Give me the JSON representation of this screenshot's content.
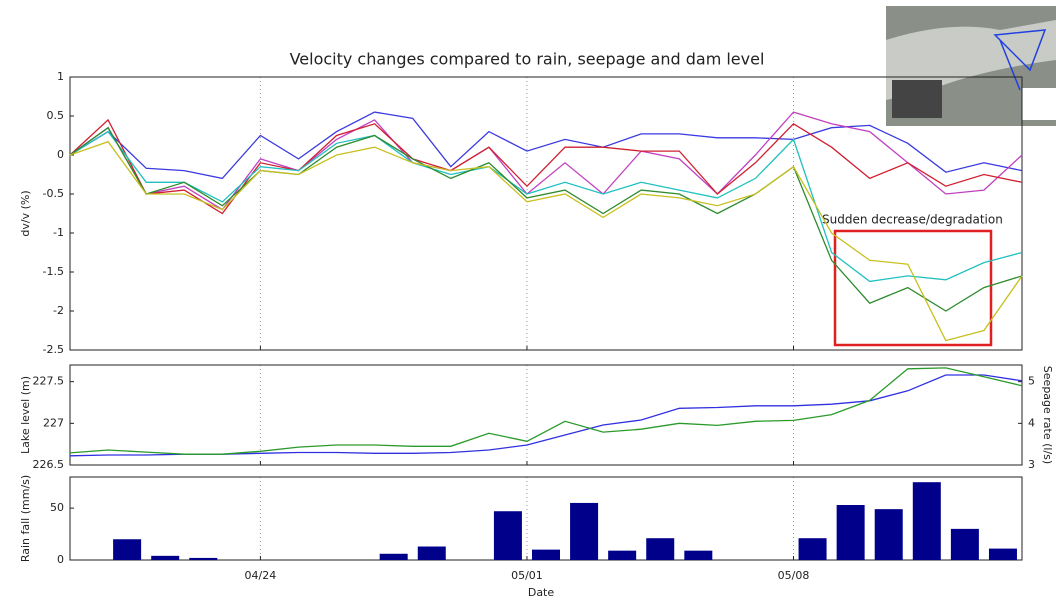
{
  "chart_data": [
    {
      "type": "line",
      "title": "Velocity changes compared to rain, seepage and dam level",
      "ylabel": "dv/v (%)",
      "annotation": "Sudden decrease/degradation",
      "x": [
        "04/19",
        "04/20",
        "04/21",
        "04/22",
        "04/23",
        "04/24",
        "04/25",
        "04/26",
        "04/27",
        "04/28",
        "04/29",
        "04/30",
        "05/01",
        "05/02",
        "05/03",
        "05/04",
        "05/05",
        "05/06",
        "05/07",
        "05/08",
        "05/09",
        "05/10",
        "05/11",
        "05/12",
        "05/13",
        "05/14"
      ],
      "ylim": [
        -2.5,
        1
      ],
      "yticks": [
        1,
        0.5,
        0,
        -0.5,
        -1,
        -1.5,
        -2,
        -2.5
      ],
      "grid": "x",
      "series": [
        {
          "color": "#3a3ae0",
          "values": [
            0,
            0.3,
            -0.17,
            -0.2,
            -0.3,
            0.25,
            -0.05,
            0.3,
            0.55,
            0.47,
            -0.15,
            0.3,
            0.05,
            0.2,
            0.1,
            0.27,
            0.27,
            0.22,
            0.22,
            0.2,
            0.35,
            0.38,
            0.15,
            -0.22,
            -0.1,
            -0.2
          ]
        },
        {
          "color": "#c040c0",
          "values": [
            0,
            0.35,
            -0.5,
            -0.4,
            -0.7,
            -0.05,
            -0.2,
            0.2,
            0.45,
            -0.1,
            -0.2,
            0.1,
            -0.5,
            -0.1,
            -0.5,
            0.05,
            -0.05,
            -0.5,
            0.0,
            0.55,
            0.4,
            0.3,
            -0.1,
            -0.5,
            -0.45,
            0.0
          ]
        },
        {
          "color": "#d02030",
          "values": [
            0,
            0.45,
            -0.5,
            -0.45,
            -0.75,
            -0.1,
            -0.2,
            0.25,
            0.4,
            -0.05,
            -0.2,
            0.1,
            -0.4,
            0.1,
            0.1,
            0.05,
            0.05,
            -0.5,
            -0.1,
            0.4,
            0.1,
            -0.3,
            -0.1,
            -0.4,
            -0.25,
            -0.35
          ]
        },
        {
          "color": "#20c0c0",
          "values": [
            0,
            0.3,
            -0.35,
            -0.35,
            -0.6,
            -0.15,
            -0.2,
            0.15,
            0.25,
            -0.1,
            -0.25,
            -0.15,
            -0.5,
            -0.35,
            -0.5,
            -0.35,
            -0.45,
            -0.55,
            -0.3,
            0.2,
            -1.25,
            -1.62,
            -1.55,
            -1.6,
            -1.38,
            -1.25
          ]
        },
        {
          "color": "#2e8b2e",
          "values": [
            0,
            0.35,
            -0.5,
            -0.35,
            -0.65,
            -0.2,
            -0.25,
            0.1,
            0.25,
            -0.05,
            -0.3,
            -0.1,
            -0.55,
            -0.45,
            -0.75,
            -0.45,
            -0.5,
            -0.75,
            -0.5,
            -0.15,
            -1.35,
            -1.9,
            -1.7,
            -2.0,
            -1.7,
            -1.55
          ]
        },
        {
          "color": "#c8c020",
          "values": [
            0,
            0.17,
            -0.5,
            -0.5,
            -0.7,
            -0.2,
            -0.25,
            0.0,
            0.1,
            -0.1,
            -0.2,
            -0.15,
            -0.6,
            -0.5,
            -0.8,
            -0.5,
            -0.55,
            -0.65,
            -0.5,
            -0.15,
            -1.0,
            -1.35,
            -1.4,
            -2.38,
            -2.25,
            -1.55
          ]
        }
      ]
    },
    {
      "type": "line",
      "ylabel": "Lake level (m)",
      "y2label": "Seepage rate (l/s)",
      "x": [
        "04/19",
        "04/20",
        "04/21",
        "04/22",
        "04/23",
        "04/24",
        "04/25",
        "04/26",
        "04/27",
        "04/28",
        "04/29",
        "04/30",
        "05/01",
        "05/02",
        "05/03",
        "05/04",
        "05/05",
        "05/06",
        "05/07",
        "05/08",
        "05/09",
        "05/10",
        "05/11",
        "05/12",
        "05/13",
        "05/14"
      ],
      "ylim": [
        226.5,
        227.7
      ],
      "yticks": [
        226.5,
        227,
        227.5
      ],
      "y2lim": [
        3,
        5.4
      ],
      "y2ticks": [
        3,
        4,
        5
      ],
      "grid": "x",
      "series": [
        {
          "color": "#3030e0",
          "values": [
            226.61,
            226.62,
            226.62,
            226.63,
            226.63,
            226.64,
            226.65,
            226.65,
            226.64,
            226.64,
            226.65,
            226.68,
            226.74,
            226.86,
            226.98,
            227.04,
            227.18,
            227.19,
            227.21,
            227.21,
            227.23,
            227.27,
            227.39,
            227.58,
            227.58,
            227.51
          ]
        },
        {
          "color": "#2a9a2a",
          "axis": "y2",
          "values": [
            3.29,
            3.36,
            3.31,
            3.26,
            3.26,
            3.33,
            3.43,
            3.48,
            3.48,
            3.45,
            3.45,
            3.76,
            3.57,
            4.05,
            3.79,
            3.86,
            4.0,
            3.95,
            4.05,
            4.07,
            4.21,
            4.55,
            5.31,
            5.33,
            5.12,
            4.9
          ]
        }
      ]
    },
    {
      "type": "bar",
      "ylabel": "Rain fall (mm/s)",
      "xlabel": "Date",
      "x": [
        "04/19",
        "04/20",
        "04/21",
        "04/22",
        "04/23",
        "04/24",
        "04/25",
        "04/26",
        "04/27",
        "04/28",
        "04/29",
        "04/30",
        "05/01",
        "05/02",
        "05/03",
        "05/04",
        "05/05",
        "05/06",
        "05/07",
        "05/08",
        "05/09",
        "05/10",
        "05/11",
        "05/12",
        "05/13",
        "05/14"
      ],
      "xticks": [
        "04/24",
        "05/01",
        "05/08"
      ],
      "ylim": [
        0,
        80
      ],
      "yticks": [
        0,
        50
      ],
      "grid": "x",
      "color": "#00008b",
      "values": [
        0,
        20,
        4,
        2,
        0,
        0,
        0,
        0,
        6,
        13,
        0,
        47,
        10,
        55,
        9,
        21,
        9,
        0,
        0,
        21,
        53,
        49,
        75,
        30,
        11,
        0
      ]
    }
  ]
}
